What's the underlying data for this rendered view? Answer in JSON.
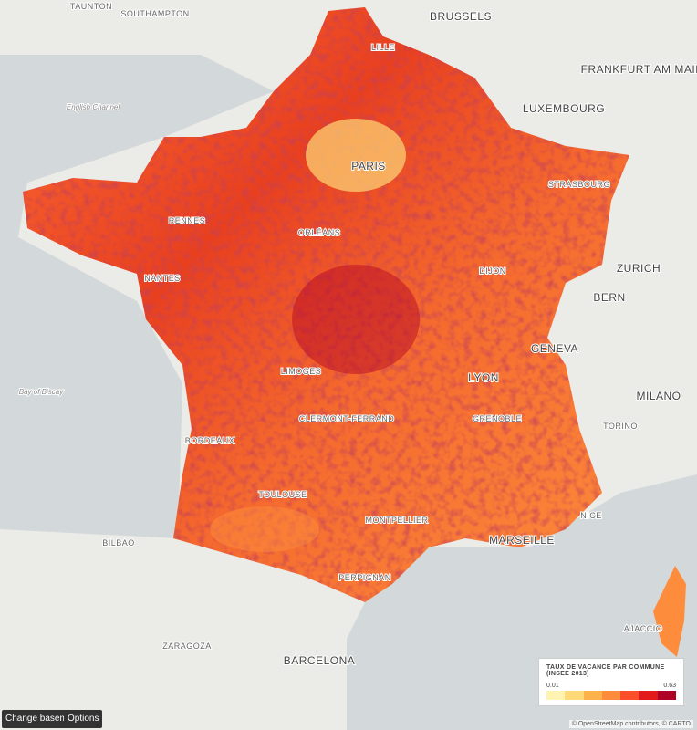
{
  "map": {
    "labels": [
      "TAUNTON",
      "SOUTHAMPTON",
      "BRUSSELS",
      "LUXEMBOURG",
      "FRANKFURT AM MAIN",
      "PARIS",
      "LILLE",
      "RENNES",
      "NANTES",
      "ORLÉANS",
      "DIJON",
      "STRASBOURG",
      "LIMOGES",
      "CLERMONT-FERRAND",
      "LYON",
      "GENEVA",
      "BERN",
      "ZURICH",
      "MILANO",
      "TORINO",
      "GRENOBLE",
      "BORDEAUX",
      "TOULOUSE",
      "MONTPELLIER",
      "MARSEILLE",
      "NICE",
      "PERPIGNAN",
      "BARCELONA",
      "ZARAGOZA",
      "BILBAO",
      "AJACCIO"
    ],
    "water_labels": [
      "English Channel",
      "Bay of Biscay"
    ]
  },
  "legend": {
    "title": "TAUX DE VACANCE PAR COMMUNE (INSEE 2013)",
    "min": 0.01,
    "max": 0.63,
    "colors": [
      "#fff3b2",
      "#fed976",
      "#feb24c",
      "#fd8d3c",
      "#fc4e2a",
      "#e31a1c",
      "#b10026"
    ]
  },
  "controls": {
    "basemap": "Change basemap",
    "options": "Options"
  },
  "attribution": "© OpenStreetMap contributors, © CARTO"
}
